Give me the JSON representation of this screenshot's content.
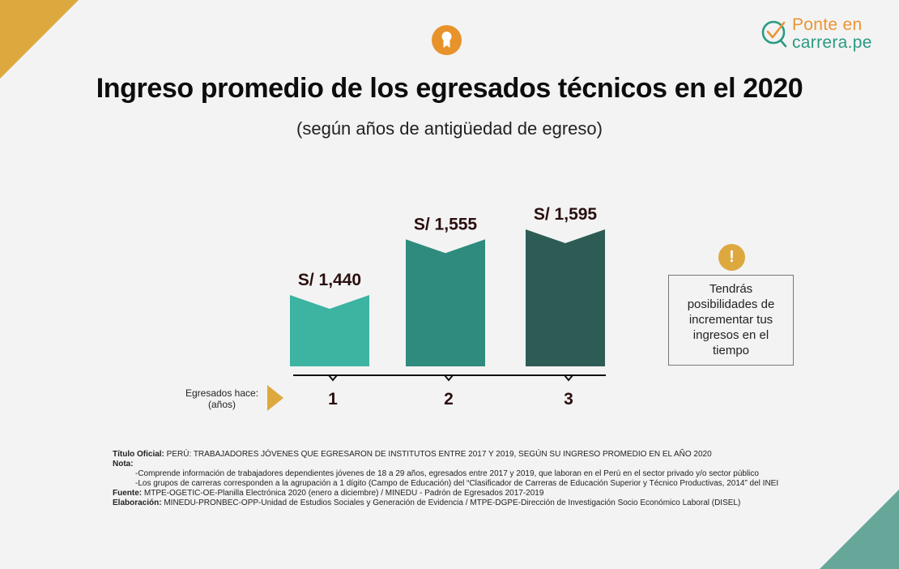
{
  "colors": {
    "accent_gold": "#dda93f",
    "accent_teal": "#67a79a",
    "medal_orange": "#e8922b",
    "logo_orange": "#eb9433",
    "logo_green": "#2a9a83",
    "bar_1": "#3db3a2",
    "bar_2": "#2e8b7e",
    "bar_3": "#2d5c55"
  },
  "logo": {
    "line1": "Ponte en",
    "line2": "carrera.pe"
  },
  "header": {
    "title": "Ingreso promedio de los egresados técnicos en el 2020",
    "subtitle": "(según años de antigüedad de egreso)"
  },
  "chart_data": {
    "type": "bar",
    "title": "Ingreso promedio de los egresados técnicos en el 2020",
    "subtitle": "(según años de antigüedad de egreso)",
    "xlabel": "Egresados hace: (años)",
    "ylabel": "",
    "categories": [
      "1",
      "2",
      "3"
    ],
    "values": [
      1440,
      1555,
      1595
    ],
    "value_labels": [
      "S/ 1,440",
      "S/ 1,555",
      "S/ 1,595"
    ],
    "currency": "S/",
    "grid": false,
    "legend": "none"
  },
  "callout": {
    "icon": "exclamation-icon",
    "icon_glyph": "!",
    "text": "Tendrás posibilidades de incrementar tus ingresos en el tiempo"
  },
  "footer": {
    "titulo_label": "Título Oficial:",
    "titulo_text": " PERÚ: TRABAJADORES JÓVENES QUE EGRESARON DE INSTITUTOS ENTRE 2017 Y 2019, SEGÚN SU INGRESO PROMEDIO EN EL AÑO 2020",
    "nota_label": "Nota:",
    "nota_1": "-Comprende información de trabajadores dependientes jóvenes de 18 a 29 años, egresados entre 2017 y 2019, que laboran en el Perú en el sector privado y/o sector público",
    "nota_2": "-Los grupos de carreras corresponden a la agrupación a 1 dígito (Campo de Educación) del “Clasificador de Carreras de Educación Superior y Técnico Productivas, 2014” del INEI",
    "fuente_label": "Fuente:",
    "fuente_text": " MTPE-OGETIC-OE-Planilla Electrónica 2020 (enero a diciembre) / MINEDU - Padrón de Egresados 2017-2019",
    "elaboracion_label": "Elaboración:",
    "elaboracion_text": " MINEDU-PRONBEC-OPP-Unidad de Estudios Sociales y Generación de Evidencia / MTPE-DGPE-Dirección de Investigación Socio Económico Laboral (DISEL)"
  }
}
